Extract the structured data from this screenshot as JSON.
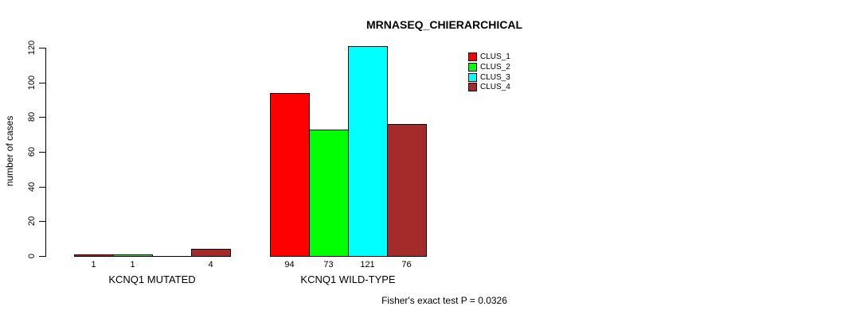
{
  "figure": {
    "background": "#ffffff",
    "text_color": "#000000"
  },
  "chart_data": {
    "type": "bar",
    "subtype": "grouped",
    "title": "MRNASEQ_CHIERARCHICAL",
    "ylabel": "number of cases",
    "xlabel": "",
    "ylim": [
      0,
      120
    ],
    "yticks": [
      0,
      20,
      40,
      60,
      80,
      100,
      120
    ],
    "grid": false,
    "legend_position": "top-right",
    "categories": [
      "KCNQ1 MUTATED",
      "KCNQ1 WILD-TYPE"
    ],
    "series": [
      {
        "name": "CLUS_1",
        "color": "#ff0000",
        "values": [
          1,
          94
        ]
      },
      {
        "name": "CLUS_2",
        "color": "#00ff00",
        "values": [
          1,
          73
        ]
      },
      {
        "name": "CLUS_3",
        "color": "#00ffff",
        "values": [
          0,
          121
        ]
      },
      {
        "name": "CLUS_4",
        "color": "#a52a2a",
        "values": [
          4,
          76
        ]
      }
    ],
    "bar_labels": [
      [
        "1",
        "1",
        "",
        "4"
      ],
      [
        "94",
        "73",
        "121",
        "76"
      ]
    ],
    "bar_border_color": "#000000",
    "annotation": "Fisher's exact test P = 0.0326"
  }
}
